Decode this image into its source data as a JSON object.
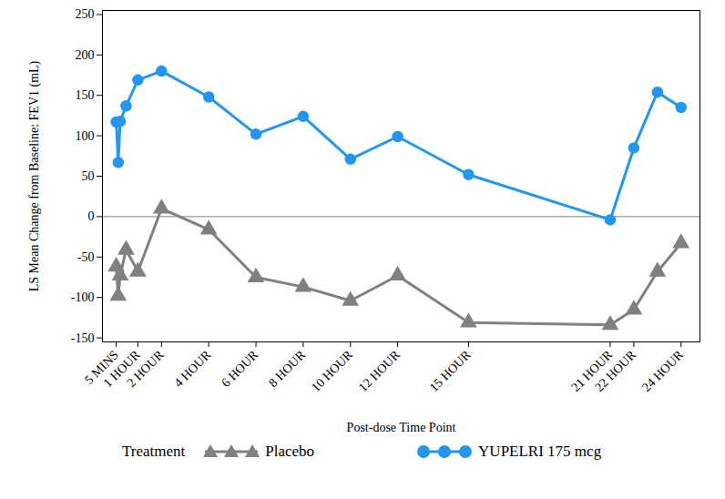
{
  "chart_data": {
    "type": "line",
    "y_label": "LS Mean Change from Baseline: FEV1 (mL)",
    "x_label": "Post-dose Time Point",
    "legend_title": "Treatment",
    "x": [
      0.083,
      0.167,
      0.25,
      0.5,
      1,
      2,
      4,
      6,
      8,
      10,
      12,
      15,
      21,
      22,
      23,
      24
    ],
    "series": [
      {
        "name": "Placebo",
        "color": "#808080",
        "marker": "triangle",
        "values": [
          -62,
          -98,
          -73,
          -41,
          -68,
          10,
          -16,
          -75,
          -87,
          -104,
          -73,
          -131,
          -134,
          -115,
          -68,
          -33
        ]
      },
      {
        "name": "YUPELRI 175 mcg",
        "color": "#2196f3",
        "marker": "circle",
        "values": [
          117,
          67,
          118,
          137,
          169,
          180,
          148,
          102,
          124,
          71,
          99,
          52,
          -4,
          85,
          154,
          135
        ]
      }
    ],
    "xlim": [
      -0.5,
      24.8
    ],
    "xticks": [
      {
        "value": 0.083,
        "label": "5 MINS"
      },
      {
        "value": 1,
        "label": "1 HOUR"
      },
      {
        "value": 2,
        "label": "2 HOUR"
      },
      {
        "value": 4,
        "label": "4 HOUR"
      },
      {
        "value": 6,
        "label": "6 HOUR"
      },
      {
        "value": 8,
        "label": "8 HOUR"
      },
      {
        "value": 10,
        "label": "10 HOUR"
      },
      {
        "value": 12,
        "label": "12 HOUR"
      },
      {
        "value": 15,
        "label": "15 HOUR"
      },
      {
        "value": 21,
        "label": "21 HOUR"
      },
      {
        "value": 22,
        "label": "22 HOUR"
      },
      {
        "value": 24,
        "label": "24 HOUR"
      }
    ],
    "ylim": [
      -155,
      255
    ],
    "yticks": [
      -150,
      -100,
      -50,
      0,
      50,
      100,
      150,
      200,
      250
    ],
    "reference_line": 0,
    "legend": "bottom"
  }
}
